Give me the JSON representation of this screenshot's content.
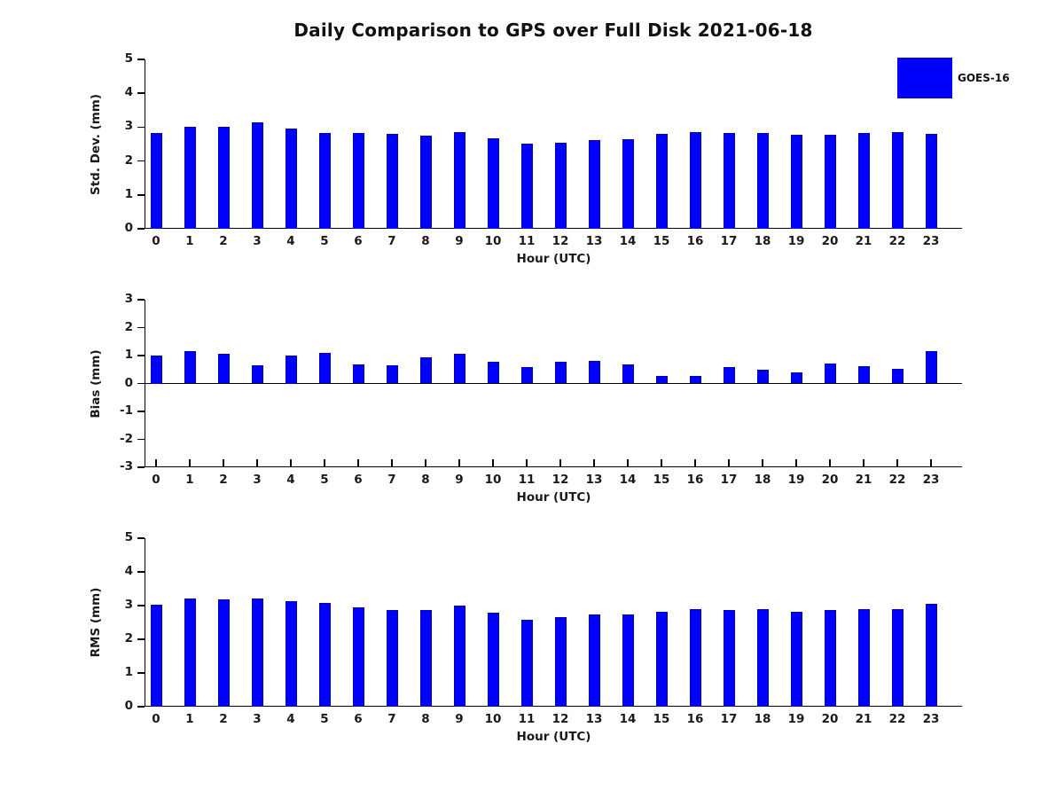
{
  "title": "Daily Comparison to GPS over Full Disk 2021-06-18",
  "legend": {
    "label": "GOES-16",
    "color": "#0000ff"
  },
  "colors": {
    "bar_fill": "#0000ff",
    "bar_edge": "#0000b4",
    "axis": "#000000"
  },
  "chart_data": [
    {
      "type": "bar",
      "ylabel": "Std. Dev. (mm)",
      "xlabel": "Hour (UTC)",
      "categories": [
        "0",
        "1",
        "2",
        "3",
        "4",
        "5",
        "6",
        "7",
        "8",
        "9",
        "10",
        "11",
        "12",
        "13",
        "14",
        "15",
        "16",
        "17",
        "18",
        "19",
        "20",
        "21",
        "22",
        "23"
      ],
      "values": [
        2.84,
        3.01,
        3.01,
        3.14,
        2.96,
        2.84,
        2.84,
        2.79,
        2.75,
        2.85,
        2.67,
        2.51,
        2.53,
        2.62,
        2.64,
        2.8,
        2.86,
        2.82,
        2.84,
        2.77,
        2.77,
        2.83,
        2.85,
        2.8
      ],
      "ylim": [
        0,
        5
      ],
      "yticks": [
        0,
        1,
        2,
        3,
        4,
        5
      ],
      "legend_entry": "GOES-16",
      "grid": false
    },
    {
      "type": "bar",
      "ylabel": "Bias (mm)",
      "xlabel": "Hour (UTC)",
      "categories": [
        "0",
        "1",
        "2",
        "3",
        "4",
        "5",
        "6",
        "7",
        "8",
        "9",
        "10",
        "11",
        "12",
        "13",
        "14",
        "15",
        "16",
        "17",
        "18",
        "19",
        "20",
        "21",
        "22",
        "23"
      ],
      "values": [
        1.0,
        1.15,
        1.05,
        0.65,
        1.0,
        1.1,
        0.68,
        0.65,
        0.95,
        1.05,
        0.78,
        0.6,
        0.78,
        0.8,
        0.67,
        0.28,
        0.28,
        0.6,
        0.48,
        0.4,
        0.72,
        0.63,
        0.53,
        1.15
      ],
      "ylim": [
        -3,
        3
      ],
      "yticks": [
        -3,
        -2,
        -1,
        0,
        1,
        2,
        3
      ],
      "legend_entry": "GOES-16",
      "grid": false
    },
    {
      "type": "bar",
      "ylabel": "RMS (mm)",
      "xlabel": "Hour (UTC)",
      "categories": [
        "0",
        "1",
        "2",
        "3",
        "4",
        "5",
        "6",
        "7",
        "8",
        "9",
        "10",
        "11",
        "12",
        "13",
        "14",
        "15",
        "16",
        "17",
        "18",
        "19",
        "20",
        "21",
        "22",
        "23"
      ],
      "values": [
        3.02,
        3.2,
        3.18,
        3.2,
        3.12,
        3.07,
        2.94,
        2.87,
        2.88,
        3.0,
        2.79,
        2.57,
        2.66,
        2.73,
        2.74,
        2.82,
        2.89,
        2.87,
        2.89,
        2.81,
        2.87,
        2.89,
        2.89,
        3.05
      ],
      "ylim": [
        0,
        5
      ],
      "yticks": [
        0,
        1,
        2,
        3,
        4,
        5
      ],
      "legend_entry": "GOES-16",
      "grid": false
    }
  ]
}
